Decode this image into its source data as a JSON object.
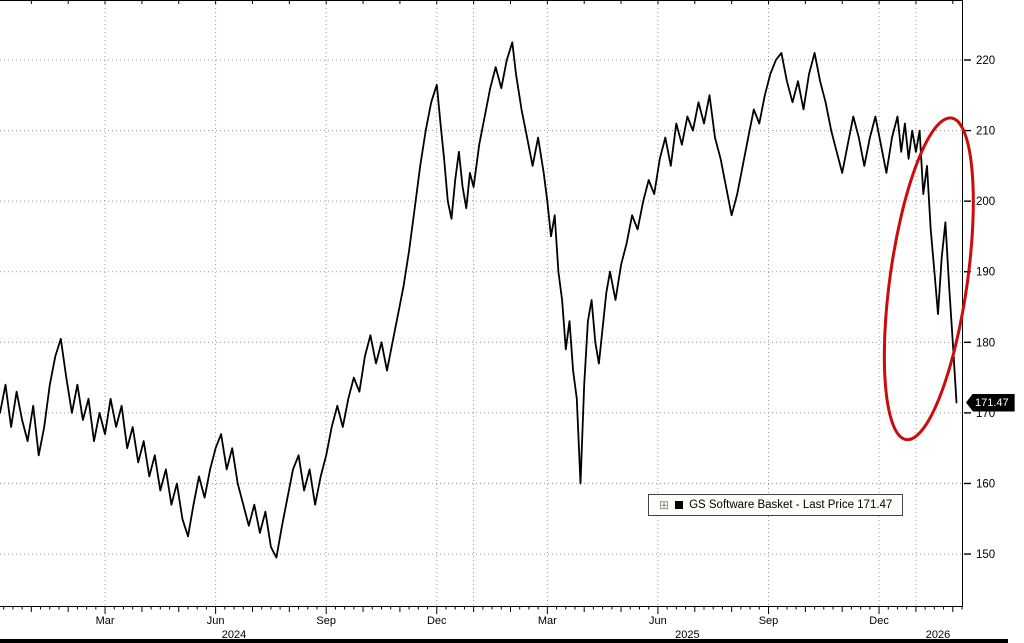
{
  "chart_data": {
    "type": "line",
    "title": "",
    "legend": {
      "expand_icon": "⊞",
      "swatch_color": "#000000",
      "label": "GS Software Basket - Last Price 171.47"
    },
    "annotations": {
      "price_badge": {
        "value": "171.47",
        "bg": "#000000",
        "fg": "#ffffff"
      },
      "ellipse": {
        "t_center": 24.35,
        "v_center": 189,
        "rx_months": 1.05,
        "ry_value": 23,
        "rotate_deg": 8,
        "color": "#cc0b0b"
      }
    },
    "x_axis": {
      "range_months": [
        -0.85,
        25.25
      ],
      "quarter_ticks": [
        {
          "t": 2,
          "label": "Mar"
        },
        {
          "t": 5,
          "label": "Jun"
        },
        {
          "t": 8,
          "label": "Sep"
        },
        {
          "t": 11,
          "label": "Dec"
        },
        {
          "t": 14,
          "label": "Mar"
        },
        {
          "t": 17,
          "label": "Jun"
        },
        {
          "t": 20,
          "label": "Sep"
        },
        {
          "t": 23,
          "label": "Dec"
        }
      ],
      "year_labels": [
        {
          "t": 5.5,
          "label": "2024"
        },
        {
          "t": 17.8,
          "label": "2025"
        },
        {
          "t": 24.6,
          "label": "2026"
        }
      ],
      "gridline_months": [
        2,
        5,
        8,
        11,
        12,
        14,
        17,
        20,
        23,
        24
      ]
    },
    "y_axis": {
      "side": "right",
      "range": [
        142.5,
        228.5
      ],
      "ticks": [
        150,
        160,
        170,
        180,
        190,
        200,
        210,
        220
      ]
    },
    "grid": {
      "style": "dotted",
      "color": "#9a9a9a"
    },
    "series": [
      {
        "name": "GS Software Basket - Last Price",
        "last_price": 171.47,
        "color": "#000000",
        "points": [
          [
            -0.85,
            170
          ],
          [
            -0.7,
            174
          ],
          [
            -0.55,
            168
          ],
          [
            -0.4,
            173
          ],
          [
            -0.25,
            169
          ],
          [
            -0.1,
            166
          ],
          [
            0.05,
            171
          ],
          [
            0.2,
            164
          ],
          [
            0.35,
            168
          ],
          [
            0.5,
            174
          ],
          [
            0.65,
            178
          ],
          [
            0.8,
            180.5
          ],
          [
            0.95,
            175
          ],
          [
            1.1,
            170
          ],
          [
            1.25,
            174
          ],
          [
            1.4,
            169
          ],
          [
            1.55,
            172
          ],
          [
            1.7,
            166
          ],
          [
            1.85,
            170
          ],
          [
            2.0,
            167
          ],
          [
            2.15,
            172
          ],
          [
            2.3,
            168
          ],
          [
            2.45,
            171
          ],
          [
            2.6,
            165
          ],
          [
            2.75,
            168
          ],
          [
            2.9,
            163
          ],
          [
            3.05,
            166
          ],
          [
            3.2,
            161
          ],
          [
            3.35,
            164
          ],
          [
            3.5,
            159
          ],
          [
            3.65,
            162
          ],
          [
            3.8,
            157
          ],
          [
            3.95,
            160
          ],
          [
            4.1,
            155
          ],
          [
            4.25,
            152.5
          ],
          [
            4.4,
            157
          ],
          [
            4.55,
            161
          ],
          [
            4.7,
            158
          ],
          [
            4.85,
            162
          ],
          [
            5.0,
            165
          ],
          [
            5.15,
            167
          ],
          [
            5.3,
            162
          ],
          [
            5.45,
            165
          ],
          [
            5.6,
            160
          ],
          [
            5.75,
            157
          ],
          [
            5.9,
            154
          ],
          [
            6.05,
            157
          ],
          [
            6.2,
            153
          ],
          [
            6.35,
            156
          ],
          [
            6.5,
            151
          ],
          [
            6.65,
            149.5
          ],
          [
            6.8,
            154
          ],
          [
            6.95,
            158
          ],
          [
            7.1,
            162
          ],
          [
            7.25,
            164
          ],
          [
            7.4,
            159
          ],
          [
            7.55,
            162
          ],
          [
            7.7,
            157
          ],
          [
            7.85,
            161
          ],
          [
            8.0,
            164
          ],
          [
            8.15,
            168
          ],
          [
            8.3,
            171
          ],
          [
            8.45,
            168
          ],
          [
            8.6,
            172
          ],
          [
            8.75,
            175
          ],
          [
            8.9,
            173
          ],
          [
            9.05,
            178
          ],
          [
            9.2,
            181
          ],
          [
            9.35,
            177
          ],
          [
            9.5,
            180
          ],
          [
            9.65,
            176
          ],
          [
            9.8,
            180
          ],
          [
            9.95,
            184
          ],
          [
            10.1,
            188
          ],
          [
            10.25,
            193
          ],
          [
            10.4,
            199
          ],
          [
            10.55,
            205
          ],
          [
            10.7,
            210
          ],
          [
            10.85,
            214
          ],
          [
            11.0,
            216.5
          ],
          [
            11.1,
            211
          ],
          [
            11.2,
            206
          ],
          [
            11.3,
            200
          ],
          [
            11.4,
            197.5
          ],
          [
            11.5,
            203
          ],
          [
            11.6,
            207
          ],
          [
            11.7,
            202
          ],
          [
            11.8,
            199
          ],
          [
            11.9,
            204
          ],
          [
            12.0,
            202
          ],
          [
            12.15,
            208
          ],
          [
            12.3,
            212
          ],
          [
            12.45,
            216
          ],
          [
            12.6,
            219
          ],
          [
            12.75,
            216
          ],
          [
            12.9,
            220
          ],
          [
            13.05,
            222.5
          ],
          [
            13.15,
            218
          ],
          [
            13.3,
            213
          ],
          [
            13.45,
            209
          ],
          [
            13.6,
            205
          ],
          [
            13.75,
            209
          ],
          [
            13.9,
            204
          ],
          [
            14.0,
            200
          ],
          [
            14.1,
            195
          ],
          [
            14.2,
            198
          ],
          [
            14.3,
            190
          ],
          [
            14.4,
            186
          ],
          [
            14.5,
            179
          ],
          [
            14.6,
            183
          ],
          [
            14.7,
            176
          ],
          [
            14.8,
            172
          ],
          [
            14.9,
            160
          ],
          [
            15.0,
            174
          ],
          [
            15.1,
            183
          ],
          [
            15.2,
            186
          ],
          [
            15.3,
            180
          ],
          [
            15.4,
            177
          ],
          [
            15.5,
            182
          ],
          [
            15.6,
            187
          ],
          [
            15.7,
            190
          ],
          [
            15.85,
            186
          ],
          [
            16.0,
            191
          ],
          [
            16.15,
            194
          ],
          [
            16.3,
            198
          ],
          [
            16.45,
            196
          ],
          [
            16.6,
            200
          ],
          [
            16.75,
            203
          ],
          [
            16.9,
            201
          ],
          [
            17.05,
            206
          ],
          [
            17.2,
            209
          ],
          [
            17.35,
            205
          ],
          [
            17.5,
            211
          ],
          [
            17.65,
            208
          ],
          [
            17.8,
            212
          ],
          [
            17.95,
            210
          ],
          [
            18.1,
            214
          ],
          [
            18.25,
            211
          ],
          [
            18.4,
            215
          ],
          [
            18.55,
            209
          ],
          [
            18.7,
            206
          ],
          [
            18.85,
            202
          ],
          [
            19.0,
            198
          ],
          [
            19.15,
            201
          ],
          [
            19.3,
            205
          ],
          [
            19.45,
            209
          ],
          [
            19.6,
            213
          ],
          [
            19.75,
            211
          ],
          [
            19.9,
            215
          ],
          [
            20.05,
            218
          ],
          [
            20.2,
            220
          ],
          [
            20.35,
            221
          ],
          [
            20.5,
            217
          ],
          [
            20.65,
            214
          ],
          [
            20.8,
            217
          ],
          [
            20.95,
            213
          ],
          [
            21.1,
            218
          ],
          [
            21.25,
            221
          ],
          [
            21.4,
            217
          ],
          [
            21.55,
            214
          ],
          [
            21.7,
            210
          ],
          [
            21.85,
            207
          ],
          [
            22.0,
            204
          ],
          [
            22.15,
            208
          ],
          [
            22.3,
            212
          ],
          [
            22.45,
            209
          ],
          [
            22.6,
            205
          ],
          [
            22.75,
            209
          ],
          [
            22.9,
            212
          ],
          [
            23.05,
            208
          ],
          [
            23.2,
            204
          ],
          [
            23.35,
            209
          ],
          [
            23.5,
            212
          ],
          [
            23.6,
            207
          ],
          [
            23.7,
            211
          ],
          [
            23.8,
            206
          ],
          [
            23.9,
            210
          ],
          [
            24.0,
            207
          ],
          [
            24.1,
            210
          ],
          [
            24.2,
            201
          ],
          [
            24.3,
            205
          ],
          [
            24.4,
            196
          ],
          [
            24.5,
            190
          ],
          [
            24.6,
            184
          ],
          [
            24.7,
            192
          ],
          [
            24.8,
            197
          ],
          [
            24.9,
            188
          ],
          [
            25.0,
            180
          ],
          [
            25.1,
            171.47
          ]
        ]
      }
    ]
  }
}
